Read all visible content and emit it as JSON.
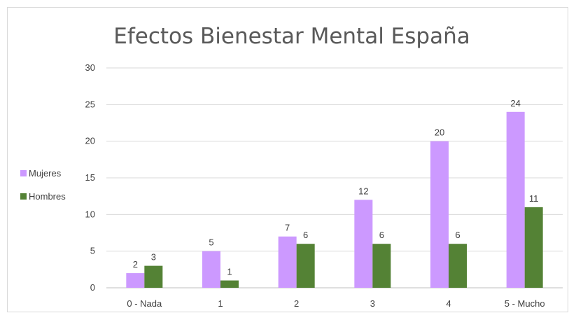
{
  "chart_data": {
    "type": "bar",
    "title": "Efectos Bienestar Mental España",
    "categories": [
      "0 - Nada",
      "1",
      "2",
      "3",
      "4",
      "5 - Mucho"
    ],
    "series": [
      {
        "name": "Mujeres",
        "values": [
          2,
          5,
          7,
          12,
          20,
          24
        ],
        "color": "#cc99ff"
      },
      {
        "name": "Hombres",
        "values": [
          3,
          1,
          6,
          6,
          6,
          11
        ],
        "color": "#548235"
      }
    ],
    "ylim": [
      0,
      30
    ],
    "yticks": [
      0,
      5,
      10,
      15,
      20,
      25,
      30
    ],
    "grid": true,
    "data_labels": true,
    "legend": "left"
  }
}
